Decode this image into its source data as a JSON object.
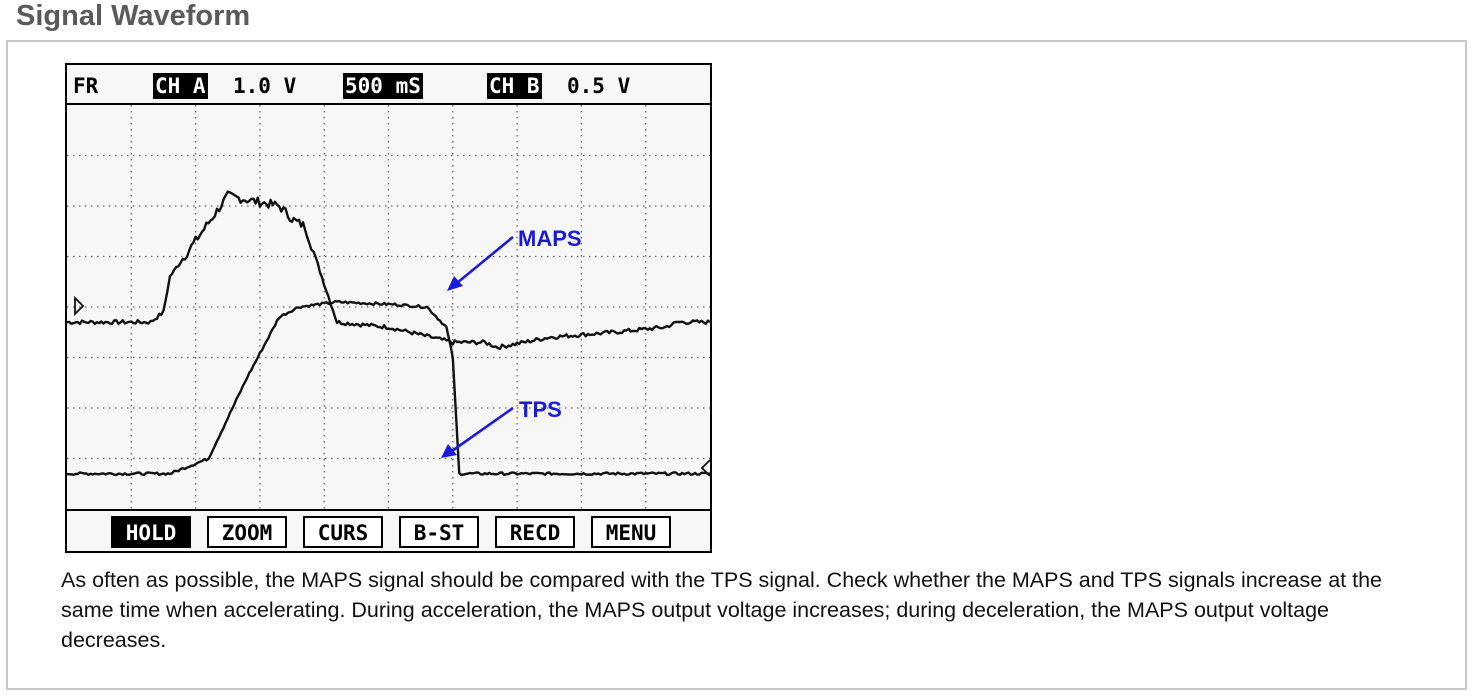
{
  "page": {
    "title": "Signal Waveform",
    "caption": "As often as possible, the MAPS signal should be compared with the TPS signal. Check whether the MAPS and TPS signals increase at the same time when accelerating. During acceleration, the MAPS output voltage increases; during deceleration, the MAPS output voltage decreases."
  },
  "scope": {
    "header": {
      "mode": "FR",
      "ch_a_label": "CH A",
      "ch_a_scale": "1.0 V",
      "timebase": "500 mS",
      "ch_b_label": "CH B",
      "ch_b_scale": "0.5 V"
    },
    "annotations": {
      "maps_label": "MAPS",
      "tps_label": "TPS",
      "color": "#1a1adc"
    },
    "softkeys": {
      "hold": "HOLD",
      "zoom": "ZOOM",
      "curs": "CURS",
      "b_st": "B-ST",
      "recd": "RECD",
      "menu": "MENU"
    },
    "active_softkey": "HOLD",
    "colors": {
      "trace": "#111111",
      "grid": "#666666",
      "background": "#f7f7f7"
    }
  },
  "chart_data": {
    "type": "line",
    "title": "",
    "x_unit_per_div": "500 mS",
    "x_divisions": 10,
    "y_divisions": 8,
    "grid": true,
    "series": [
      {
        "name": "MAPS",
        "channel": "CH A",
        "volts_per_div": "1.0 V",
        "x": [
          0,
          1.3,
          1.5,
          1.6,
          2.5,
          3.3,
          3.5,
          3.55,
          3.7,
          4.2,
          5.0,
          6.0,
          6.5,
          6.7,
          7.5,
          8.5,
          9.3,
          9.5,
          10
        ],
        "y": [
          3.7,
          3.7,
          3.9,
          4.6,
          6.2,
          6.0,
          5.75,
          5.7,
          5.6,
          3.7,
          3.6,
          3.3,
          3.3,
          3.2,
          3.4,
          3.5,
          3.6,
          3.7,
          3.7
        ]
      },
      {
        "name": "TPS",
        "channel": "CH B",
        "volts_per_div": "0.5 V",
        "x": [
          0,
          1.6,
          2.2,
          2.8,
          3.3,
          3.6,
          4.2,
          5.1,
          5.6,
          5.9,
          6.0,
          6.1,
          7.0,
          8.5,
          10
        ],
        "y": [
          0.7,
          0.7,
          1.0,
          2.6,
          3.8,
          4.0,
          4.1,
          4.05,
          4.0,
          3.6,
          3.0,
          0.7,
          0.7,
          0.7,
          0.7
        ]
      }
    ]
  }
}
